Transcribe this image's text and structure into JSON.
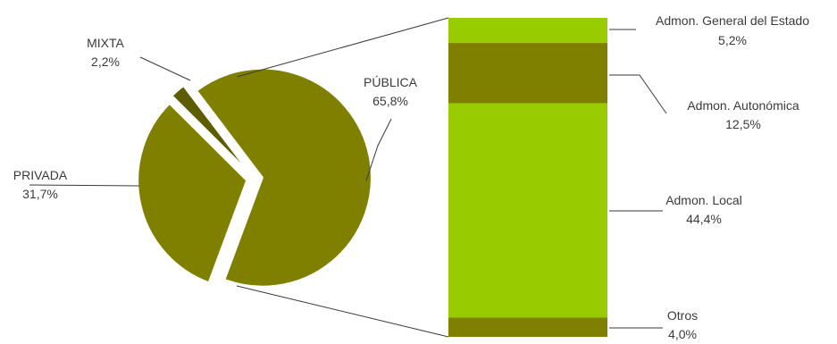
{
  "chart_data": [
    {
      "type": "pie",
      "title": "",
      "slices": [
        {
          "label": "PÚBLICA",
          "value": 65.8,
          "value_label": "65,8%",
          "color": "#808000",
          "exploded": true
        },
        {
          "label": "PRIVADA",
          "value": 31.7,
          "value_label": "31,7%",
          "color": "#808000",
          "exploded": true
        },
        {
          "label": "MIXTA",
          "value": 2.2,
          "value_label": "2,2%",
          "color": "#5c5c00",
          "exploded": true
        }
      ],
      "legend": "none",
      "data_labels": "outside with leader lines"
    },
    {
      "type": "bar",
      "stacked": true,
      "orientation": "vertical",
      "breakdown_of": "PÚBLICA",
      "series": [
        {
          "name": "Admon. General del Estado",
          "value": 5.2,
          "value_label": "5,2%",
          "color": "#99cc00"
        },
        {
          "name": "Admon. Autonómica",
          "value": 12.5,
          "value_label": "12,5%",
          "color": "#808000"
        },
        {
          "name": "Admon. Local",
          "value": 44.4,
          "value_label": "44,4%",
          "color": "#99cc00"
        },
        {
          "name": "Otros",
          "value": 4.0,
          "value_label": "4,0%",
          "color": "#808000"
        }
      ],
      "legend": "none",
      "data_labels": "right with leader lines"
    }
  ]
}
